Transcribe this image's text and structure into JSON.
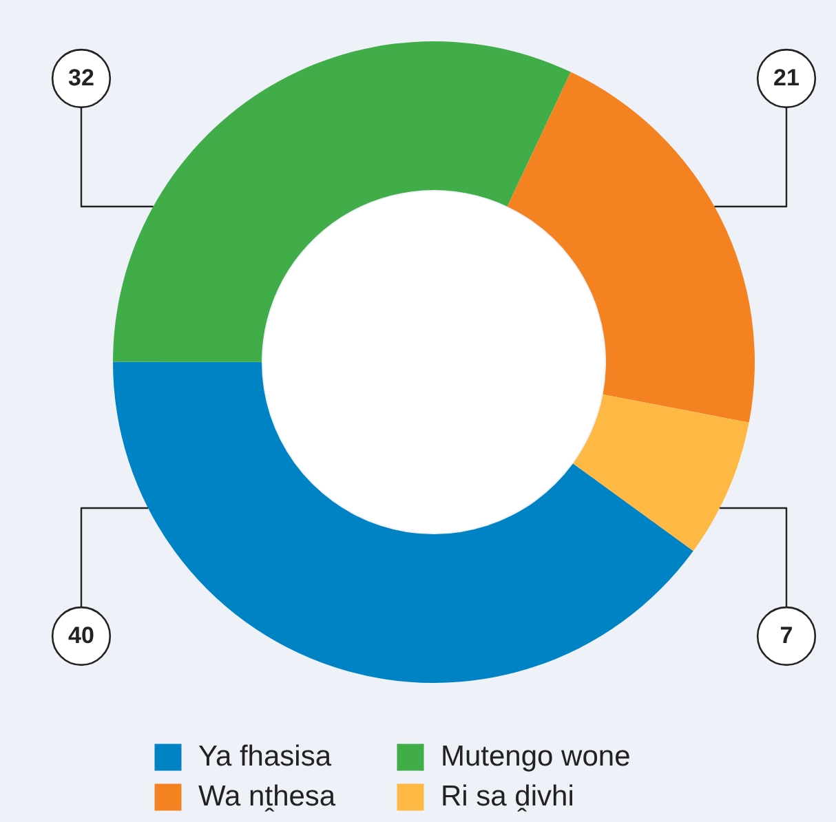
{
  "chart_data": {
    "type": "donut",
    "categories": [
      "Ya fhasisa",
      "Mutengo wone",
      "Wa nṱhesa",
      "Ri sa ḓivhi"
    ],
    "values": [
      40,
      32,
      21,
      7
    ],
    "colors": [
      "#0083c4",
      "#41ad49",
      "#f48220",
      "#fdb943"
    ],
    "data_labels": true,
    "legend": "bottom"
  }
}
